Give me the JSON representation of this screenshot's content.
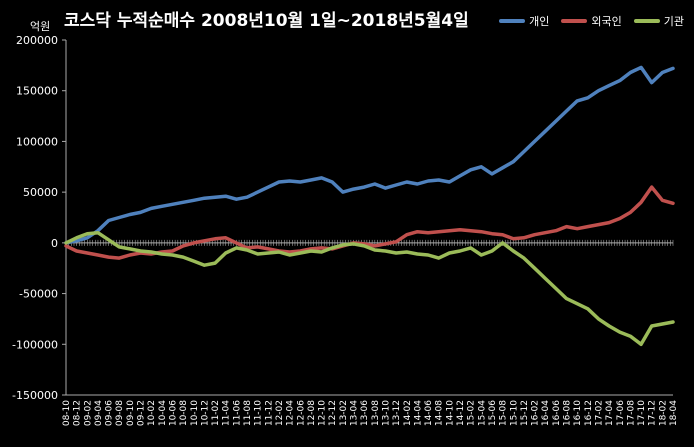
{
  "chart_data": {
    "type": "line",
    "title": "코스닥 누적순매수 2008년10월 1일~2018년5월4일",
    "unit_label": "억원",
    "ylim": [
      -150000,
      200000
    ],
    "yticks": [
      200000,
      150000,
      100000,
      50000,
      0,
      -50000,
      -100000,
      -150000
    ],
    "ytick_labels": [
      "200000",
      "150000",
      "100000",
      "50000",
      "0",
      "-50000",
      "-100000",
      "-150000"
    ],
    "categories": [
      "08-10",
      "08-12",
      "09-02",
      "09-04",
      "09-06",
      "09-08",
      "09-10",
      "09-12",
      "10-02",
      "10-04",
      "10-06",
      "10-08",
      "10-10",
      "10-12",
      "11-02",
      "11-04",
      "11-06",
      "11-08",
      "11-10",
      "11-12",
      "12-02",
      "12-04",
      "12-06",
      "12-08",
      "12-10",
      "12-12",
      "13-02",
      "13-04",
      "13-06",
      "13-08",
      "13-10",
      "13-12",
      "14-02",
      "14-04",
      "14-06",
      "14-08",
      "14-10",
      "14-12",
      "15-02",
      "15-04",
      "15-06",
      "15-08",
      "15-10",
      "15-12",
      "16-02",
      "16-04",
      "16-06",
      "16-08",
      "16-10",
      "16-12",
      "17-02",
      "17-04",
      "17-06",
      "17-08",
      "17-10",
      "17-12",
      "18-02",
      "18-04"
    ],
    "legend_position": "top-right",
    "grid": false,
    "series": [
      {
        "name": "개인",
        "color": "#4F81BD",
        "values": [
          0,
          2000,
          5000,
          12000,
          22000,
          25000,
          28000,
          30000,
          34000,
          36000,
          38000,
          40000,
          42000,
          44000,
          45000,
          46000,
          43000,
          45000,
          50000,
          55000,
          60000,
          61000,
          60000,
          62000,
          64000,
          60000,
          50000,
          53000,
          55000,
          58000,
          54000,
          57000,
          60000,
          58000,
          61000,
          62000,
          60000,
          66000,
          72000,
          75000,
          68000,
          74000,
          80000,
          90000,
          100000,
          110000,
          120000,
          130000,
          140000,
          143000,
          150000,
          155000,
          160000,
          168000,
          173000,
          158000,
          168000,
          172000
        ]
      },
      {
        "name": "외국인",
        "color": "#C0504D",
        "values": [
          -3000,
          -8000,
          -10000,
          -12000,
          -14000,
          -15000,
          -12000,
          -10000,
          -11000,
          -9000,
          -8000,
          -3000,
          0,
          2000,
          4000,
          5000,
          0,
          -5000,
          -4000,
          -6000,
          -8000,
          -9000,
          -8000,
          -6000,
          -5000,
          -6000,
          -3000,
          0,
          -1000,
          -3000,
          -1000,
          1000,
          8000,
          11000,
          10000,
          11000,
          12000,
          13000,
          12000,
          11000,
          9000,
          8000,
          4000,
          5000,
          8000,
          10000,
          12000,
          16000,
          14000,
          16000,
          18000,
          20000,
          24000,
          30000,
          40000,
          55000,
          42000,
          39000
        ]
      },
      {
        "name": "기관",
        "color": "#9BBB59",
        "values": [
          0,
          5000,
          9000,
          10000,
          3000,
          -4000,
          -6000,
          -8000,
          -9000,
          -11000,
          -12000,
          -14000,
          -18000,
          -22000,
          -20000,
          -10000,
          -5000,
          -7000,
          -11000,
          -10000,
          -9000,
          -12000,
          -10000,
          -8000,
          -9000,
          -5000,
          -2000,
          -1000,
          -3000,
          -7000,
          -8000,
          -10000,
          -9000,
          -11000,
          -12000,
          -15000,
          -10000,
          -8000,
          -5000,
          -12000,
          -8000,
          0,
          -8000,
          -15000,
          -25000,
          -35000,
          -45000,
          -55000,
          -60000,
          -65000,
          -75000,
          -82000,
          -88000,
          -92000,
          -100000,
          -82000,
          -80000,
          -78000
        ]
      }
    ]
  }
}
